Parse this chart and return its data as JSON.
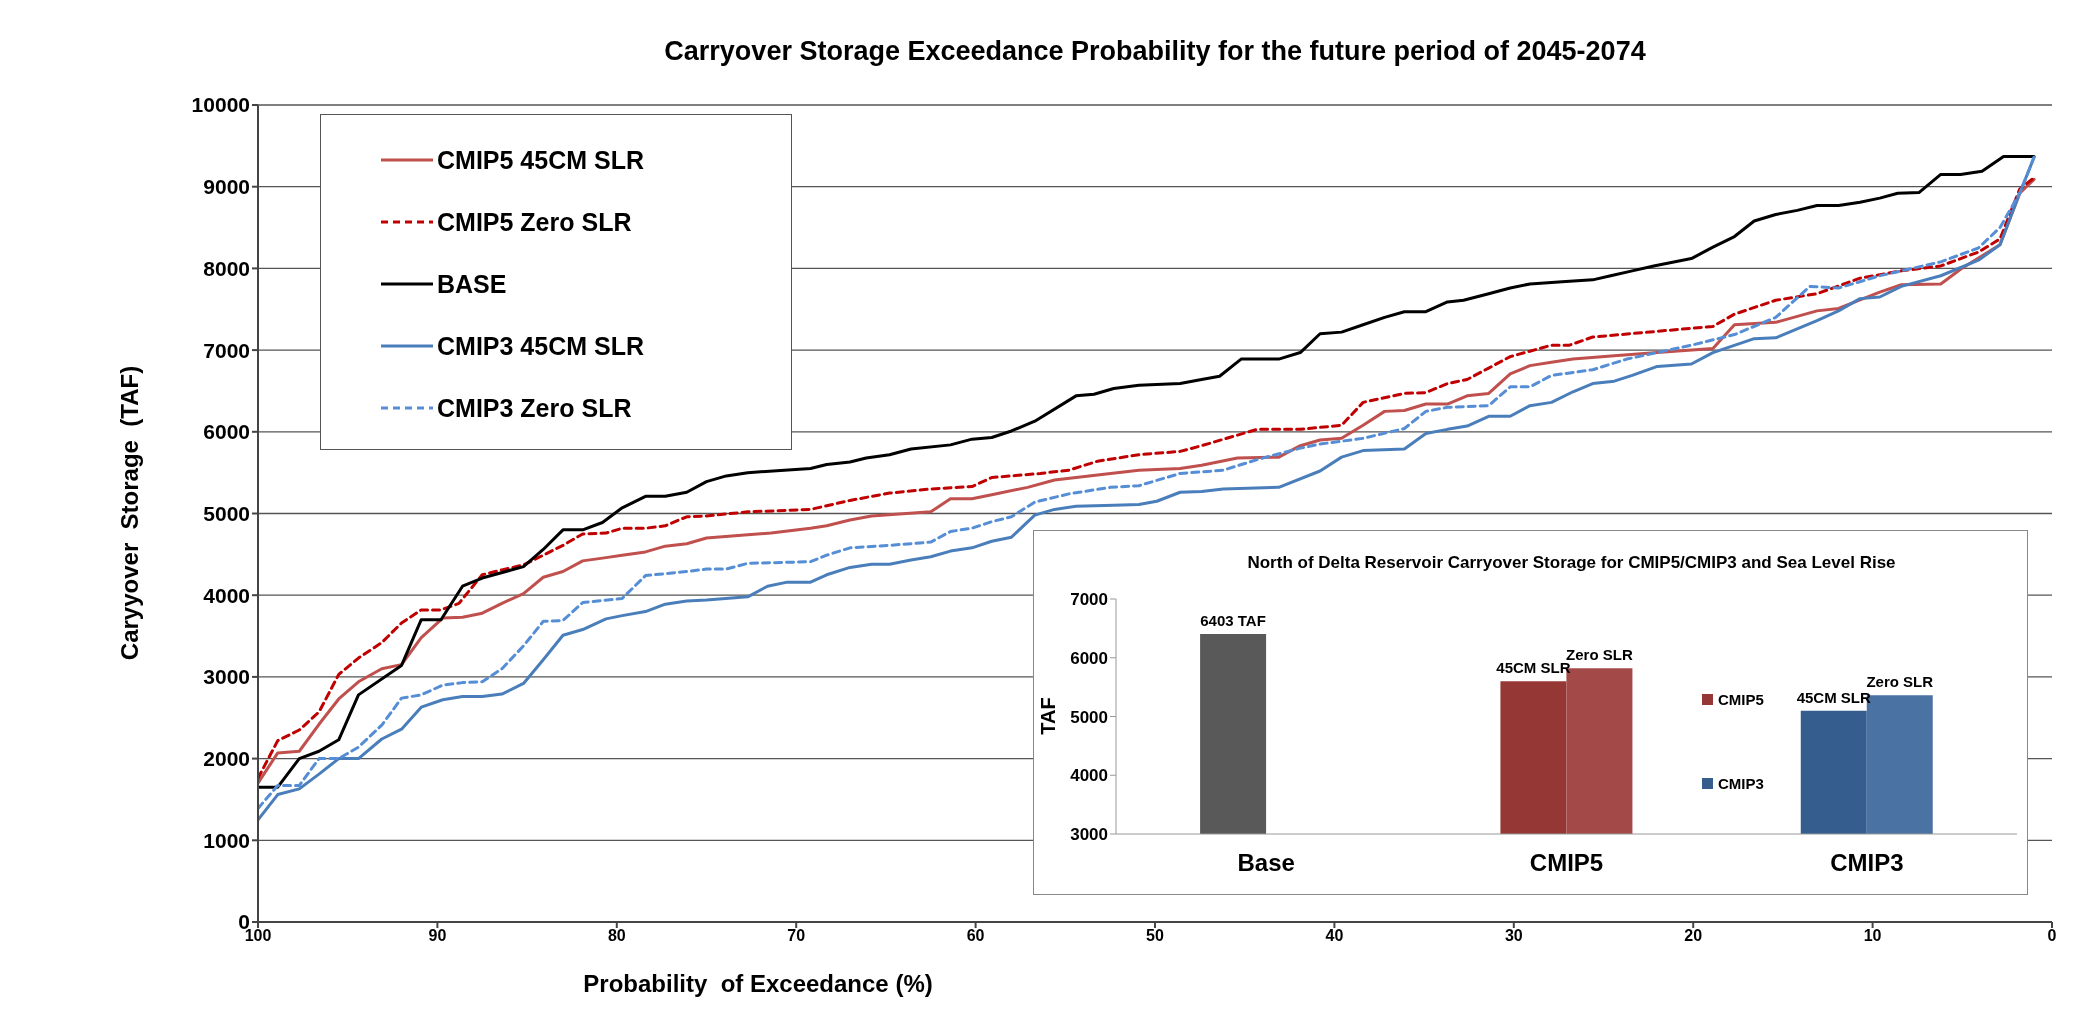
{
  "chart_data": [
    {
      "type": "line",
      "title": "Carryover Storage Exceedance Probability for the future period of 2045-2074",
      "xlabel": "Probability  of Exceedance (%)",
      "ylabel": "Caryyover  Storage  (TAF)",
      "xlim": [
        100,
        0
      ],
      "xticks": [
        100,
        90,
        80,
        70,
        60,
        50,
        40,
        30,
        20,
        10,
        0
      ],
      "ylim": [
        0,
        10000
      ],
      "yticks": [
        0,
        1000,
        2000,
        3000,
        4000,
        5000,
        6000,
        7000,
        8000,
        9000,
        10000
      ],
      "grid": "y",
      "legend": "top left",
      "marker": "none",
      "series": [
        {
          "name": "CMIP5 45CM SLR",
          "color": "#c0504d",
          "line_style": "solid",
          "x": [
            100,
            98.9,
            97.7,
            96.6,
            95.5,
            94.4,
            93.1,
            92,
            90.9,
            89.7,
            88.6,
            87.5,
            86.4,
            85.2,
            84.1,
            83,
            81.9,
            80.6,
            79.7,
            78.4,
            77.3,
            76.1,
            75,
            72.7,
            71.4,
            69.2,
            68.3,
            67,
            65.8,
            62.5,
            61.4,
            60.2,
            59.1,
            57.1,
            55.6,
            53.2,
            50.9,
            48.6,
            47.4,
            45.4,
            43.1,
            41.9,
            40.8,
            39.6,
            38.4,
            37.2,
            36.1,
            34.9,
            33.7,
            32.6,
            31.4,
            30.2,
            29.1,
            27.9,
            26.7,
            24.4,
            22,
            18.9,
            17.7,
            15.4,
            13.1,
            11.9,
            9.6,
            8.4,
            6.2,
            5.1,
            2.9,
            1.8,
            1
          ],
          "values": [
            1700,
            2070,
            2090,
            2420,
            2730,
            2940,
            3100,
            3150,
            3480,
            3720,
            3730,
            3780,
            3900,
            4020,
            4220,
            4290,
            4420,
            4460,
            4490,
            4530,
            4600,
            4630,
            4700,
            4740,
            4760,
            4820,
            4850,
            4920,
            4970,
            5020,
            5180,
            5180,
            5230,
            5320,
            5410,
            5470,
            5530,
            5550,
            5590,
            5680,
            5690,
            5830,
            5900,
            5920,
            6080,
            6250,
            6260,
            6340,
            6340,
            6440,
            6470,
            6710,
            6810,
            6850,
            6890,
            6930,
            6970,
            7020,
            7310,
            7340,
            7480,
            7510,
            7710,
            7800,
            7810,
            7990,
            8290,
            8920,
            9090
          ]
        },
        {
          "name": "CMIP5 Zero SLR",
          "color": "#c00000",
          "line_style": "dashed",
          "x": [
            100,
            98.9,
            97.7,
            96.6,
            95.5,
            94.4,
            93.1,
            92,
            90.9,
            89.8,
            88.8,
            87.5,
            86.4,
            85.2,
            84.1,
            83,
            81.9,
            80.6,
            79.7,
            78.4,
            77.3,
            76.1,
            75,
            72.7,
            69.2,
            67,
            64.8,
            62.5,
            60.2,
            59.1,
            56.4,
            54.8,
            53.2,
            50.9,
            48.6,
            47.4,
            45.4,
            44.3,
            41.9,
            39.6,
            38.4,
            36.1,
            34.9,
            33.7,
            32.6,
            31.4,
            30.2,
            27.9,
            26.9,
            25.6,
            22,
            18.9,
            17.7,
            15.4,
            13.1,
            10.7,
            8.4,
            6.2,
            4.1,
            2.9,
            1.8,
            1
          ],
          "values": [
            1760,
            2220,
            2350,
            2570,
            3030,
            3230,
            3420,
            3660,
            3820,
            3820,
            3900,
            4250,
            4310,
            4370,
            4490,
            4610,
            4750,
            4760,
            4820,
            4820,
            4850,
            4960,
            4970,
            5020,
            5050,
            5160,
            5250,
            5300,
            5330,
            5440,
            5490,
            5530,
            5640,
            5720,
            5760,
            5830,
            5960,
            6030,
            6030,
            6080,
            6360,
            6470,
            6480,
            6590,
            6640,
            6780,
            6920,
            7060,
            7060,
            7160,
            7230,
            7290,
            7440,
            7610,
            7690,
            7880,
            7970,
            8030,
            8200,
            8360,
            8970,
            9110
          ]
        },
        {
          "name": "BASE",
          "color": "#000000",
          "line_style": "solid",
          "x": [
            100,
            98.9,
            97.7,
            96.6,
            95.5,
            94.4,
            92,
            90.9,
            89.8,
            88.6,
            87.5,
            85.2,
            84.1,
            83,
            81.9,
            80.8,
            79.7,
            78.4,
            77.3,
            76.1,
            75,
            73.9,
            72.7,
            69.2,
            68.3,
            67,
            66.1,
            64.8,
            63.6,
            61.4,
            60.2,
            59.1,
            58,
            56.7,
            54.4,
            53.4,
            52.3,
            50.9,
            48.6,
            47.4,
            46.4,
            45.2,
            43.1,
            41.9,
            40.8,
            39.6,
            38.4,
            37.2,
            36.1,
            34.9,
            33.7,
            32.8,
            31.4,
            30.2,
            29.1,
            27.1,
            25.6,
            24.6,
            23.4,
            22.2,
            20.1,
            18.9,
            17.7,
            16.6,
            15.4,
            14.2,
            13.1,
            11.9,
            10.7,
            9.6,
            8.6,
            7.4,
            6.2,
            5.1,
            3.9,
            2.7,
            1
          ],
          "values": [
            1650,
            1650,
            2000,
            2090,
            2230,
            2780,
            3140,
            3700,
            3700,
            4110,
            4210,
            4350,
            4560,
            4800,
            4800,
            4890,
            5070,
            5210,
            5210,
            5260,
            5390,
            5460,
            5500,
            5550,
            5600,
            5630,
            5680,
            5720,
            5790,
            5840,
            5910,
            5930,
            6010,
            6130,
            6440,
            6460,
            6530,
            6570,
            6590,
            6640,
            6680,
            6890,
            6890,
            6970,
            7200,
            7220,
            7310,
            7400,
            7470,
            7470,
            7590,
            7610,
            7690,
            7760,
            7810,
            7840,
            7860,
            7910,
            7970,
            8030,
            8120,
            8260,
            8390,
            8580,
            8660,
            8710,
            8770,
            8770,
            8810,
            8860,
            8920,
            8930,
            9150,
            9150,
            9190,
            9370,
            9370
          ]
        },
        {
          "name": "CMIP3 45CM SLR",
          "color": "#4a7ebb",
          "line_style": "solid",
          "x": [
            100,
            98.9,
            97.7,
            96.6,
            95.5,
            94.4,
            93.1,
            92,
            90.9,
            89.7,
            88.6,
            87.5,
            86.4,
            85.2,
            84.1,
            83,
            81.9,
            80.6,
            79.7,
            78.4,
            77.3,
            76.1,
            75,
            72.7,
            71.6,
            70.5,
            69.2,
            68.3,
            67,
            65.8,
            64.8,
            63.6,
            62.5,
            61.4,
            60.2,
            59.1,
            58,
            56.7,
            55.6,
            54.4,
            52.3,
            50.9,
            49.9,
            48.6,
            47.4,
            46.2,
            43.1,
            40.8,
            39.6,
            38.4,
            36.1,
            34.9,
            33.7,
            32.6,
            31.4,
            30.2,
            29.1,
            27.9,
            26.7,
            25.6,
            24.4,
            23.4,
            22,
            20.1,
            18.9,
            16.6,
            15.4,
            13.1,
            11.9,
            10.7,
            9.6,
            8.4,
            6.2,
            4.1,
            2.9,
            1.8,
            1
          ],
          "values": [
            1250,
            1560,
            1630,
            1810,
            2000,
            2000,
            2240,
            2360,
            2630,
            2720,
            2760,
            2760,
            2790,
            2920,
            3210,
            3510,
            3580,
            3710,
            3750,
            3800,
            3890,
            3930,
            3940,
            3980,
            4110,
            4160,
            4160,
            4250,
            4340,
            4380,
            4380,
            4430,
            4470,
            4540,
            4580,
            4660,
            4710,
            4980,
            5050,
            5090,
            5100,
            5110,
            5150,
            5260,
            5270,
            5300,
            5320,
            5520,
            5690,
            5770,
            5790,
            5980,
            6030,
            6070,
            6190,
            6190,
            6320,
            6360,
            6490,
            6590,
            6620,
            6690,
            6800,
            6830,
            6970,
            7140,
            7150,
            7360,
            7480,
            7630,
            7650,
            7780,
            7910,
            8100,
            8290,
            8920,
            9360
          ]
        },
        {
          "name": "CMIP3 Zero SLR",
          "color": "#558ed5",
          "line_style": "dashed",
          "x": [
            100,
            98.9,
            97.7,
            96.6,
            95.5,
            94.4,
            93.1,
            92,
            90.9,
            89.7,
            88.6,
            87.5,
            86.4,
            85.2,
            84.1,
            83,
            81.9,
            79.7,
            78.4,
            76.1,
            75,
            73.9,
            72.7,
            69.2,
            68.3,
            67,
            64.8,
            62.5,
            61.4,
            60.2,
            59.1,
            58,
            56.7,
            54.8,
            52.5,
            50.9,
            48.6,
            46.2,
            44.3,
            41.9,
            40.8,
            38.4,
            36.1,
            34.9,
            33.7,
            31.4,
            30.2,
            29.1,
            27.9,
            25.6,
            23.7,
            22,
            20.1,
            17.7,
            15.4,
            13.5,
            11.9,
            9.6,
            6.2,
            4.1,
            2.9,
            1.8,
            1
          ],
          "values": [
            1390,
            1670,
            1670,
            2000,
            2000,
            2140,
            2410,
            2740,
            2780,
            2900,
            2930,
            2940,
            3100,
            3380,
            3680,
            3690,
            3910,
            3960,
            4240,
            4290,
            4320,
            4320,
            4390,
            4410,
            4490,
            4580,
            4610,
            4650,
            4780,
            4820,
            4900,
            4960,
            5140,
            5240,
            5320,
            5340,
            5490,
            5530,
            5660,
            5800,
            5850,
            5920,
            6040,
            6250,
            6300,
            6320,
            6550,
            6550,
            6690,
            6760,
            6890,
            6970,
            7060,
            7190,
            7400,
            7780,
            7760,
            7910,
            8080,
            8250,
            8500,
            8920,
            9360
          ]
        }
      ]
    },
    {
      "type": "bar",
      "title": "North of Delta Reservoir Carryover Storage for CMIP5/CMIP3 and Sea Level Rise",
      "ylabel": "TAF",
      "categories": [
        "Base",
        "CMIP5",
        "CMIP3"
      ],
      "ylim": [
        3000,
        7000
      ],
      "yticks": [
        3000,
        4000,
        5000,
        6000,
        7000
      ],
      "annotations": [
        "CMIP5",
        "CMIP3"
      ],
      "series": [
        {
          "color": "#595959",
          "values": [
            6403,
            null,
            null
          ],
          "value_labels": [
            "6403 TAF",
            null,
            null
          ]
        },
        {
          "name": "45CM SLR",
          "colors": [
            "#595959",
            "#953735",
            "#355e8f"
          ],
          "values": [
            null,
            5600,
            5100
          ]
        },
        {
          "name": "Zero SLR",
          "colors": [
            "#595959",
            "#a34a48",
            "#4a72a3"
          ],
          "values": [
            null,
            5820,
            5360
          ]
        }
      ]
    }
  ]
}
